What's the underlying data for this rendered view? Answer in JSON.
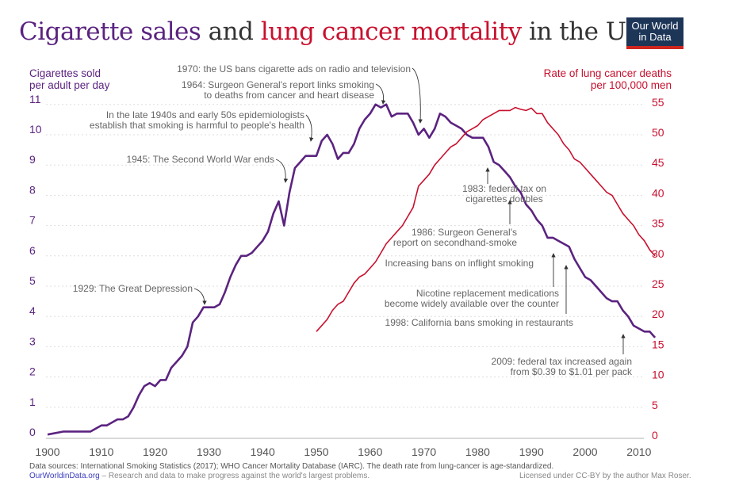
{
  "title": {
    "part1": "Cigarette sales",
    "part2": " and ",
    "part3": "lung cancer mortality",
    "part4": " in the US"
  },
  "logo": {
    "line1": "Our World",
    "line2": "in Data"
  },
  "colors": {
    "cigarettes": "#5b2380",
    "lung_cancer": "#c8102e",
    "logo_bg": "#1d3557",
    "logo_accent": "#ce261e",
    "annotation": "#666666"
  },
  "chart_data": {
    "type": "line",
    "title": "Cigarette sales and lung cancer mortality in the US",
    "xlabel": "",
    "ylabel_left": [
      "Cigarettes sold",
      "per adult per day"
    ],
    "ylabel_right": [
      "Rate of lung cancer deaths",
      "per 100,000 men"
    ],
    "xlim": [
      1897,
      2014
    ],
    "ylim_left": [
      0,
      11
    ],
    "ylim_right": [
      0,
      55
    ],
    "x_ticks": [
      1900,
      1910,
      1920,
      1930,
      1940,
      1950,
      1960,
      1970,
      1980,
      1990,
      2000,
      2010
    ],
    "y_ticks_left": [
      0,
      1,
      2,
      3,
      4,
      5,
      6,
      7,
      8,
      9,
      10,
      11
    ],
    "y_ticks_right": [
      0,
      5,
      10,
      15,
      20,
      25,
      30,
      35,
      40,
      45,
      50,
      55
    ],
    "grid": "horizontal dotted",
    "series": [
      {
        "name": "Cigarettes sold per adult per day",
        "axis": "left",
        "x": [
          1900,
          1903,
          1908,
          1910,
          1911,
          1913,
          1914,
          1915,
          1916,
          1917,
          1918,
          1919,
          1920,
          1921,
          1922,
          1923,
          1924,
          1925,
          1926,
          1927,
          1928,
          1929,
          1930,
          1931,
          1932,
          1933,
          1934,
          1935,
          1936,
          1937,
          1938,
          1939,
          1940,
          1941,
          1942,
          1943,
          1944,
          1945,
          1946,
          1947,
          1948,
          1949,
          1950,
          1951,
          1952,
          1953,
          1954,
          1955,
          1956,
          1957,
          1958,
          1959,
          1960,
          1961,
          1962,
          1963,
          1964,
          1965,
          1966,
          1967,
          1968,
          1969,
          1970,
          1971,
          1972,
          1973,
          1974,
          1975,
          1976,
          1977,
          1978,
          1979,
          1980,
          1981,
          1982,
          1983,
          1984,
          1985,
          1986,
          1987,
          1988,
          1989,
          1990,
          1991,
          1992,
          1993,
          1994,
          1995,
          1996,
          1997,
          1998,
          1999,
          2000,
          2001,
          2002,
          2003,
          2004,
          2005,
          2006,
          2007,
          2008,
          2009,
          2010,
          2011,
          2012,
          2013
        ],
        "y": [
          0.1,
          0.2,
          0.2,
          0.4,
          0.4,
          0.6,
          0.6,
          0.7,
          1.0,
          1.4,
          1.7,
          1.8,
          1.7,
          1.9,
          1.9,
          2.3,
          2.5,
          2.7,
          3.0,
          3.8,
          4.0,
          4.3,
          4.3,
          4.3,
          4.4,
          4.8,
          5.3,
          5.7,
          6.0,
          6.0,
          6.1,
          6.3,
          6.5,
          6.8,
          7.4,
          7.8,
          7.0,
          8.1,
          8.9,
          9.1,
          9.3,
          9.3,
          9.3,
          9.8,
          10.0,
          9.7,
          9.2,
          9.4,
          9.4,
          9.7,
          10.2,
          10.5,
          10.7,
          11.0,
          10.9,
          11.0,
          10.6,
          10.7,
          10.7,
          10.7,
          10.4,
          10.0,
          10.2,
          9.9,
          10.2,
          10.7,
          10.6,
          10.4,
          10.3,
          10.2,
          10.0,
          9.9,
          9.9,
          9.9,
          9.6,
          9.1,
          9.0,
          8.8,
          8.6,
          8.3,
          8.1,
          7.7,
          7.5,
          7.2,
          7.0,
          6.6,
          6.6,
          6.5,
          6.4,
          6.3,
          5.9,
          5.6,
          5.3,
          5.2,
          5.0,
          4.8,
          4.6,
          4.5,
          4.5,
          4.2,
          4.0,
          3.7,
          3.6,
          3.5,
          3.5,
          3.3
        ]
      },
      {
        "name": "Rate of lung cancer deaths per 100,000 men",
        "axis": "right",
        "x": [
          1950,
          1951,
          1952,
          1953,
          1954,
          1955,
          1956,
          1957,
          1958,
          1959,
          1960,
          1961,
          1962,
          1963,
          1964,
          1965,
          1966,
          1967,
          1968,
          1969,
          1970,
          1971,
          1972,
          1973,
          1974,
          1975,
          1976,
          1977,
          1978,
          1979,
          1980,
          1981,
          1982,
          1983,
          1984,
          1985,
          1986,
          1987,
          1988,
          1989,
          1990,
          1991,
          1992,
          1993,
          1994,
          1995,
          1996,
          1997,
          1998,
          1999,
          2000,
          2001,
          2002,
          2003,
          2004,
          2005,
          2006,
          2007,
          2008,
          2009,
          2010,
          2011,
          2012,
          2013
        ],
        "y": [
          17.5,
          18.5,
          19.5,
          21,
          22,
          22.5,
          24,
          25.5,
          26.5,
          27,
          28,
          29,
          30.5,
          32,
          33,
          34,
          35,
          36.5,
          38,
          41.5,
          42.5,
          43.5,
          45,
          46,
          47,
          48,
          48.5,
          49.5,
          50.5,
          51,
          51.5,
          52.5,
          53,
          53.5,
          54,
          54,
          54,
          54.5,
          54.2,
          54,
          54.4,
          53.5,
          53.5,
          52,
          51,
          50,
          48.5,
          47.5,
          46,
          45.5,
          44.5,
          43.5,
          42.5,
          41.5,
          40.5,
          40,
          38.5,
          37,
          36,
          35,
          33.5,
          32.5,
          31,
          30
        ]
      }
    ],
    "annotations": [
      {
        "lines": [
          "1970: the US bans cigarette ads on radio and television"
        ]
      },
      {
        "lines": [
          "1964: Surgeon General's report links smoking",
          "to deaths from cancer and heart disease"
        ]
      },
      {
        "lines": [
          "In the late 1940s and early 50s epidemiologists",
          "establish that smoking is harmful to people's health"
        ]
      },
      {
        "lines": [
          "1945: The Second World War ends"
        ]
      },
      {
        "lines": [
          "1929: The Great Depression"
        ]
      },
      {
        "lines": [
          "1983: federal tax on",
          "cigarettes doubles"
        ]
      },
      {
        "lines": [
          "1986: Surgeon General's",
          "report on secondhand-smoke"
        ]
      },
      {
        "lines": [
          "Increasing bans on inflight smoking"
        ]
      },
      {
        "lines": [
          "Nicotine replacement medications",
          "become widely available over the counter"
        ]
      },
      {
        "lines": [
          "1998: California bans smoking in restaurants"
        ]
      },
      {
        "lines": [
          "2009: federal tax increased again",
          "from $0.39 to $1.01 per pack"
        ]
      }
    ]
  },
  "footer": {
    "sources": "Data sources: International Smoking Statistics (2017); WHO Cancer Mortality Database (IARC). The death rate from lung-cancer is age-standardized.",
    "site": "OurWorldinData.org",
    "tagline": " – Research and data to make progress against the world's largest problems.",
    "license": "Licensed under CC-BY by the author Max Roser."
  }
}
